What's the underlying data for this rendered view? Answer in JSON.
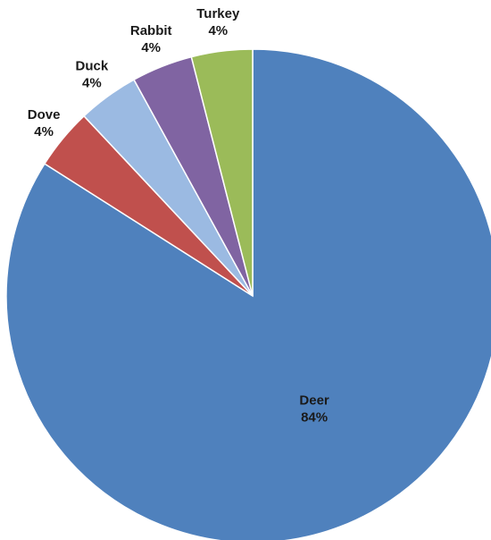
{
  "chart_data": {
    "type": "pie",
    "title": "",
    "start_angle_deg": 0,
    "direction": "clockwise",
    "legend": "none",
    "slices": [
      {
        "label": "Deer",
        "value": 84,
        "display": "84%",
        "color": "#4f81bd"
      },
      {
        "label": "Dove",
        "value": 4,
        "display": "4%",
        "color": "#c0504d"
      },
      {
        "label": "Duck",
        "value": 4,
        "display": "4%",
        "color": "#9bbae2"
      },
      {
        "label": "Rabbit",
        "value": 4,
        "display": "4%",
        "color": "#8064a2"
      },
      {
        "label": "Turkey",
        "value": 4,
        "display": "4%",
        "color": "#9bbb59"
      }
    ]
  }
}
